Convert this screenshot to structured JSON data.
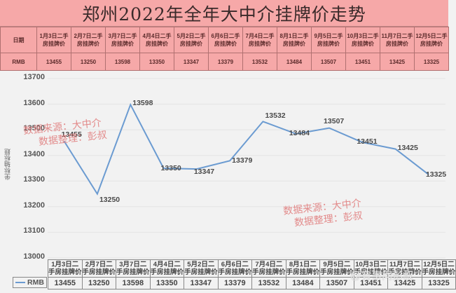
{
  "title": "郑州2022年全年大中介挂牌价走势",
  "top_table": {
    "header_label": "日期",
    "row_label": "RMB",
    "columns": [
      {
        "line1": "1月3日二手",
        "line2": "房挂牌价",
        "value": "13455"
      },
      {
        "line1": "2月7日二手",
        "line2": "房挂牌价",
        "value": "13250"
      },
      {
        "line1": "3月7日二手",
        "line2": "房挂牌价",
        "value": "13598"
      },
      {
        "line1": "4月4日二手",
        "line2": "房挂牌价",
        "value": "13350"
      },
      {
        "line1": "5月2日二手",
        "line2": "房挂牌价",
        "value": "13347"
      },
      {
        "line1": "6月6日二手",
        "line2": "房挂牌价",
        "value": "13379"
      },
      {
        "line1": "7月4日二手",
        "line2": "房挂牌价",
        "value": "13532"
      },
      {
        "line1": "8月1日二手",
        "line2": "房挂牌价",
        "value": "13484"
      },
      {
        "line1": "9月5日二手",
        "line2": "房挂牌价",
        "value": "13507"
      },
      {
        "line1": "10月3日二手",
        "line2": "房挂牌价",
        "value": "13451"
      },
      {
        "line1": "11月7日二手",
        "line2": "房挂牌价",
        "value": "13425"
      },
      {
        "line1": "12月5日二手",
        "line2": "房挂牌价",
        "value": "13325"
      }
    ]
  },
  "chart": {
    "y_axis_title": "坐标轴标题",
    "y_ticks": [
      "13700",
      "13600",
      "13500",
      "13400",
      "13300",
      "13200",
      "13100",
      "13000"
    ],
    "legend_label": "RMB",
    "watermark_top": {
      "line1": "数据来源：大中介",
      "line2": "数据整理：彭叔"
    },
    "watermark_bottom": {
      "line1": "数据来源：大中介",
      "line2": "数据整理：彭叔"
    },
    "corner_watermark": "@有事问彭叔",
    "bottom_table": {
      "headers": [
        "1月3日二手房挂牌价",
        "2月7日二手房挂牌价",
        "3月7日二手房挂牌价",
        "4月4日二手房挂牌价",
        "5月2日二手房挂牌价",
        "6月6日二手房挂牌价",
        "7月4日二手房挂牌价",
        "8月1日二手房挂牌价",
        "9月5日二手房挂牌价",
        "10月3日二手房挂牌价",
        "11月7日二手房挂牌价",
        "12月5日二手房挂牌价"
      ],
      "headers_line1": [
        "1月3日二",
        "2月7日二",
        "3月7日二",
        "4月4日二",
        "5月2日二",
        "6月6日二",
        "7月4日二",
        "8月1日二",
        "9月5日二",
        "10月3日二",
        "11月7日二",
        "12月5日二"
      ],
      "headers_line2": [
        "手房挂牌价",
        "手房挂牌价",
        "手房挂牌价",
        "手房挂牌价",
        "手房挂牌价",
        "手房挂牌价",
        "手房挂牌价",
        "手房挂牌价",
        "手房挂牌价",
        "手房挂牌价",
        "手房挂牌价",
        "手房挂牌价"
      ],
      "values": [
        "13455",
        "13250",
        "13598",
        "13350",
        "13347",
        "13379",
        "13532",
        "13484",
        "13507",
        "13451",
        "13425",
        "13325"
      ]
    },
    "line_color": "#6b9bd1"
  },
  "chart_data": {
    "type": "line",
    "title": "郑州2022年全年大中介挂牌价走势",
    "categories": [
      "1月3日二手房挂牌价",
      "2月7日二手房挂牌价",
      "3月7日二手房挂牌价",
      "4月4日二手房挂牌价",
      "5月2日二手房挂牌价",
      "6月6日二手房挂牌价",
      "7月4日二手房挂牌价",
      "8月1日二手房挂牌价",
      "9月5日二手房挂牌价",
      "10月3日二手房挂牌价",
      "11月7日二手房挂牌价",
      "12月5日二手房挂牌价"
    ],
    "series": [
      {
        "name": "RMB",
        "values": [
          13455,
          13250,
          13598,
          13350,
          13347,
          13379,
          13532,
          13484,
          13507,
          13451,
          13425,
          13325
        ]
      }
    ],
    "xlabel": "",
    "ylabel": "坐标轴标题",
    "ylim": [
      13000,
      13700
    ],
    "yticks": [
      13000,
      13100,
      13200,
      13300,
      13400,
      13500,
      13600,
      13700
    ],
    "grid": true,
    "data_labels": true,
    "legend_position": "bottom-table"
  }
}
